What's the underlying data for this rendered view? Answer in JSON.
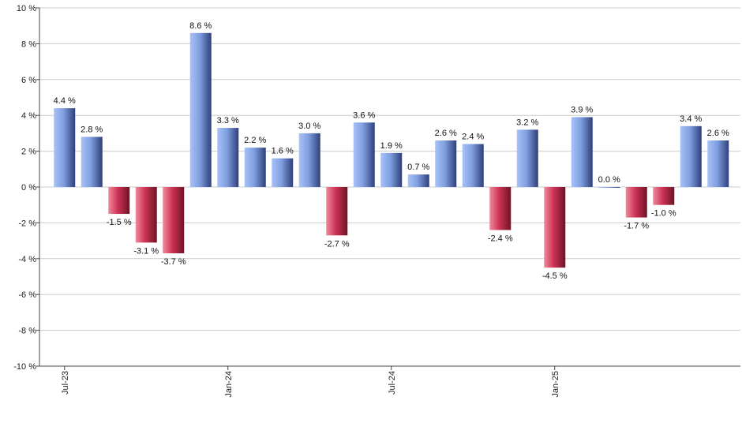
{
  "chart_data": {
    "type": "bar",
    "title": "",
    "xlabel": "",
    "ylabel": "",
    "ylim": [
      -10,
      10
    ],
    "ytick_values": [
      10,
      8,
      6,
      4,
      2,
      0,
      -2,
      -4,
      -6,
      -8,
      -10
    ],
    "ytick_labels": [
      "10 %",
      "8 %",
      "6 %",
      "4 %",
      "2 %",
      "0 %",
      "-2 %",
      "-4 %",
      "-6 %",
      "-8 %",
      "-10 %"
    ],
    "xtick_labels": [
      {
        "label": "Jul-23",
        "index": 0
      },
      {
        "label": "Jan-24",
        "index": 6
      },
      {
        "label": "Jul-24",
        "index": 12
      },
      {
        "label": "Jan-25",
        "index": 18
      }
    ],
    "values": [
      4.4,
      2.8,
      -1.5,
      -3.1,
      -3.7,
      8.6,
      3.3,
      2.2,
      1.6,
      3.0,
      -2.7,
      3.6,
      1.9,
      0.7,
      2.6,
      2.4,
      -2.4,
      3.2,
      -4.5,
      3.9,
      0.0,
      -1.7,
      -1.0,
      3.4,
      2.6
    ],
    "data_labels": [
      "4.4 %",
      "2.8 %",
      "-1.5 %",
      "-3.1 %",
      "-3.7 %",
      "8.6 %",
      "3.3 %",
      "2.2 %",
      "1.6 %",
      "3.0 %",
      "-2.7 %",
      "3.6 %",
      "1.9 %",
      "0.7 %",
      "2.6 %",
      "2.4 %",
      "-2.4 %",
      "3.2 %",
      "-4.5 %",
      "3.9 %",
      "0.0 %",
      "-1.7 %",
      "-1.0 %",
      "3.4 %",
      "2.6 %"
    ],
    "positive_color": "#7f9fe0",
    "negative_color": "#cc3355",
    "grid": true,
    "legend": "none"
  }
}
